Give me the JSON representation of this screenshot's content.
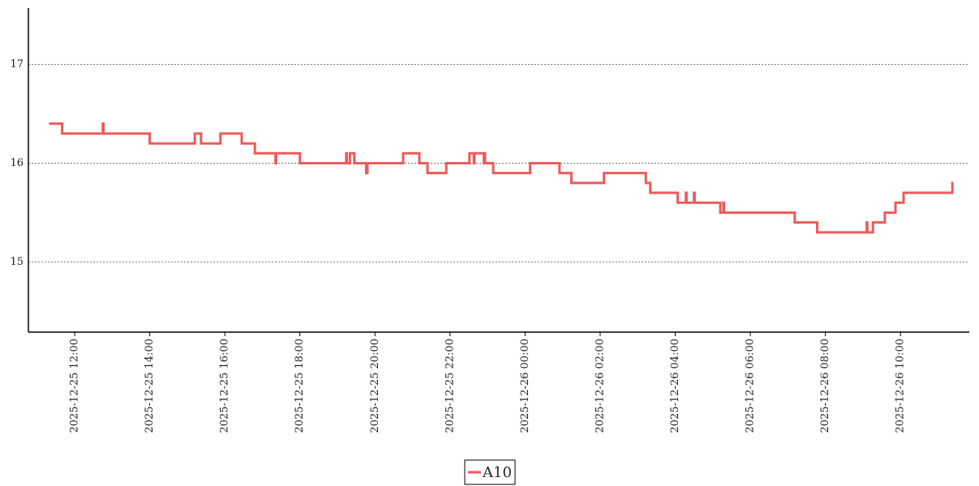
{
  "chart_data": {
    "type": "line",
    "step": "post",
    "grid": true,
    "x": [
      "2025-12-25 11:19",
      "2025-12-25 11:40",
      "2025-12-25 12:45",
      "2025-12-25 12:46",
      "2025-12-25 14:00",
      "2025-12-25 15:12",
      "2025-12-25 15:22",
      "2025-12-25 15:53",
      "2025-12-25 16:27",
      "2025-12-25 16:48",
      "2025-12-25 17:21",
      "2025-12-25 17:22",
      "2025-12-25 18:00",
      "2025-12-25 19:14",
      "2025-12-25 19:15",
      "2025-12-25 19:20",
      "2025-12-25 19:27",
      "2025-12-25 19:46",
      "2025-12-25 19:48",
      "2025-12-25 20:45",
      "2025-12-25 21:11",
      "2025-12-25 21:24",
      "2025-12-25 21:54",
      "2025-12-25 22:31",
      "2025-12-25 22:38",
      "2025-12-25 22:39",
      "2025-12-25 22:54",
      "2025-12-25 22:55",
      "2025-12-25 22:56",
      "2025-12-25 23:09",
      "2025-12-26 00:08",
      "2025-12-26 00:55",
      "2025-12-26 01:14",
      "2025-12-26 02:06",
      "2025-12-26 03:13",
      "2025-12-26 03:20",
      "2025-12-26 04:04",
      "2025-12-26 04:17",
      "2025-12-26 04:18",
      "2025-12-26 04:30",
      "2025-12-26 04:31",
      "2025-12-26 05:12",
      "2025-12-26 05:17",
      "2025-12-26 05:18",
      "2025-12-26 07:11",
      "2025-12-26 07:47",
      "2025-12-26 09:06",
      "2025-12-26 09:07",
      "2025-12-26 09:16",
      "2025-12-26 09:35",
      "2025-12-26 09:52",
      "2025-12-26 10:05",
      "2025-12-26 11:23",
      "2025-12-26 11:24"
    ],
    "series": [
      {
        "name": "A10",
        "color": "#ee5a5a",
        "values": [
          16.4,
          16.3,
          16.4,
          16.3,
          16.2,
          16.3,
          16.2,
          16.3,
          16.2,
          16.1,
          16.0,
          16.1,
          16.0,
          16.1,
          16.0,
          16.1,
          16.0,
          15.9,
          16.0,
          16.1,
          16.0,
          15.9,
          16.0,
          16.1,
          16.0,
          16.1,
          16.0,
          16.1,
          16.0,
          15.9,
          16.0,
          15.9,
          15.8,
          15.9,
          15.8,
          15.7,
          15.6,
          15.7,
          15.6,
          15.7,
          15.6,
          15.5,
          15.6,
          15.5,
          15.4,
          15.3,
          15.4,
          15.3,
          15.4,
          15.5,
          15.6,
          15.7,
          15.8,
          15.8
        ]
      }
    ],
    "xlim": [
      "2025-12-25 10:46",
      "2025-12-26 11:50"
    ],
    "xticks": [
      "2025-12-25 12:00",
      "2025-12-25 14:00",
      "2025-12-25 16:00",
      "2025-12-25 18:00",
      "2025-12-25 20:00",
      "2025-12-25 22:00",
      "2025-12-26 00:00",
      "2025-12-26 02:00",
      "2025-12-26 04:00",
      "2025-12-26 06:00",
      "2025-12-26 08:00",
      "2025-12-26 10:00"
    ],
    "ylim": [
      14.29,
      17.57
    ],
    "yticks": [
      15,
      16,
      17
    ]
  }
}
